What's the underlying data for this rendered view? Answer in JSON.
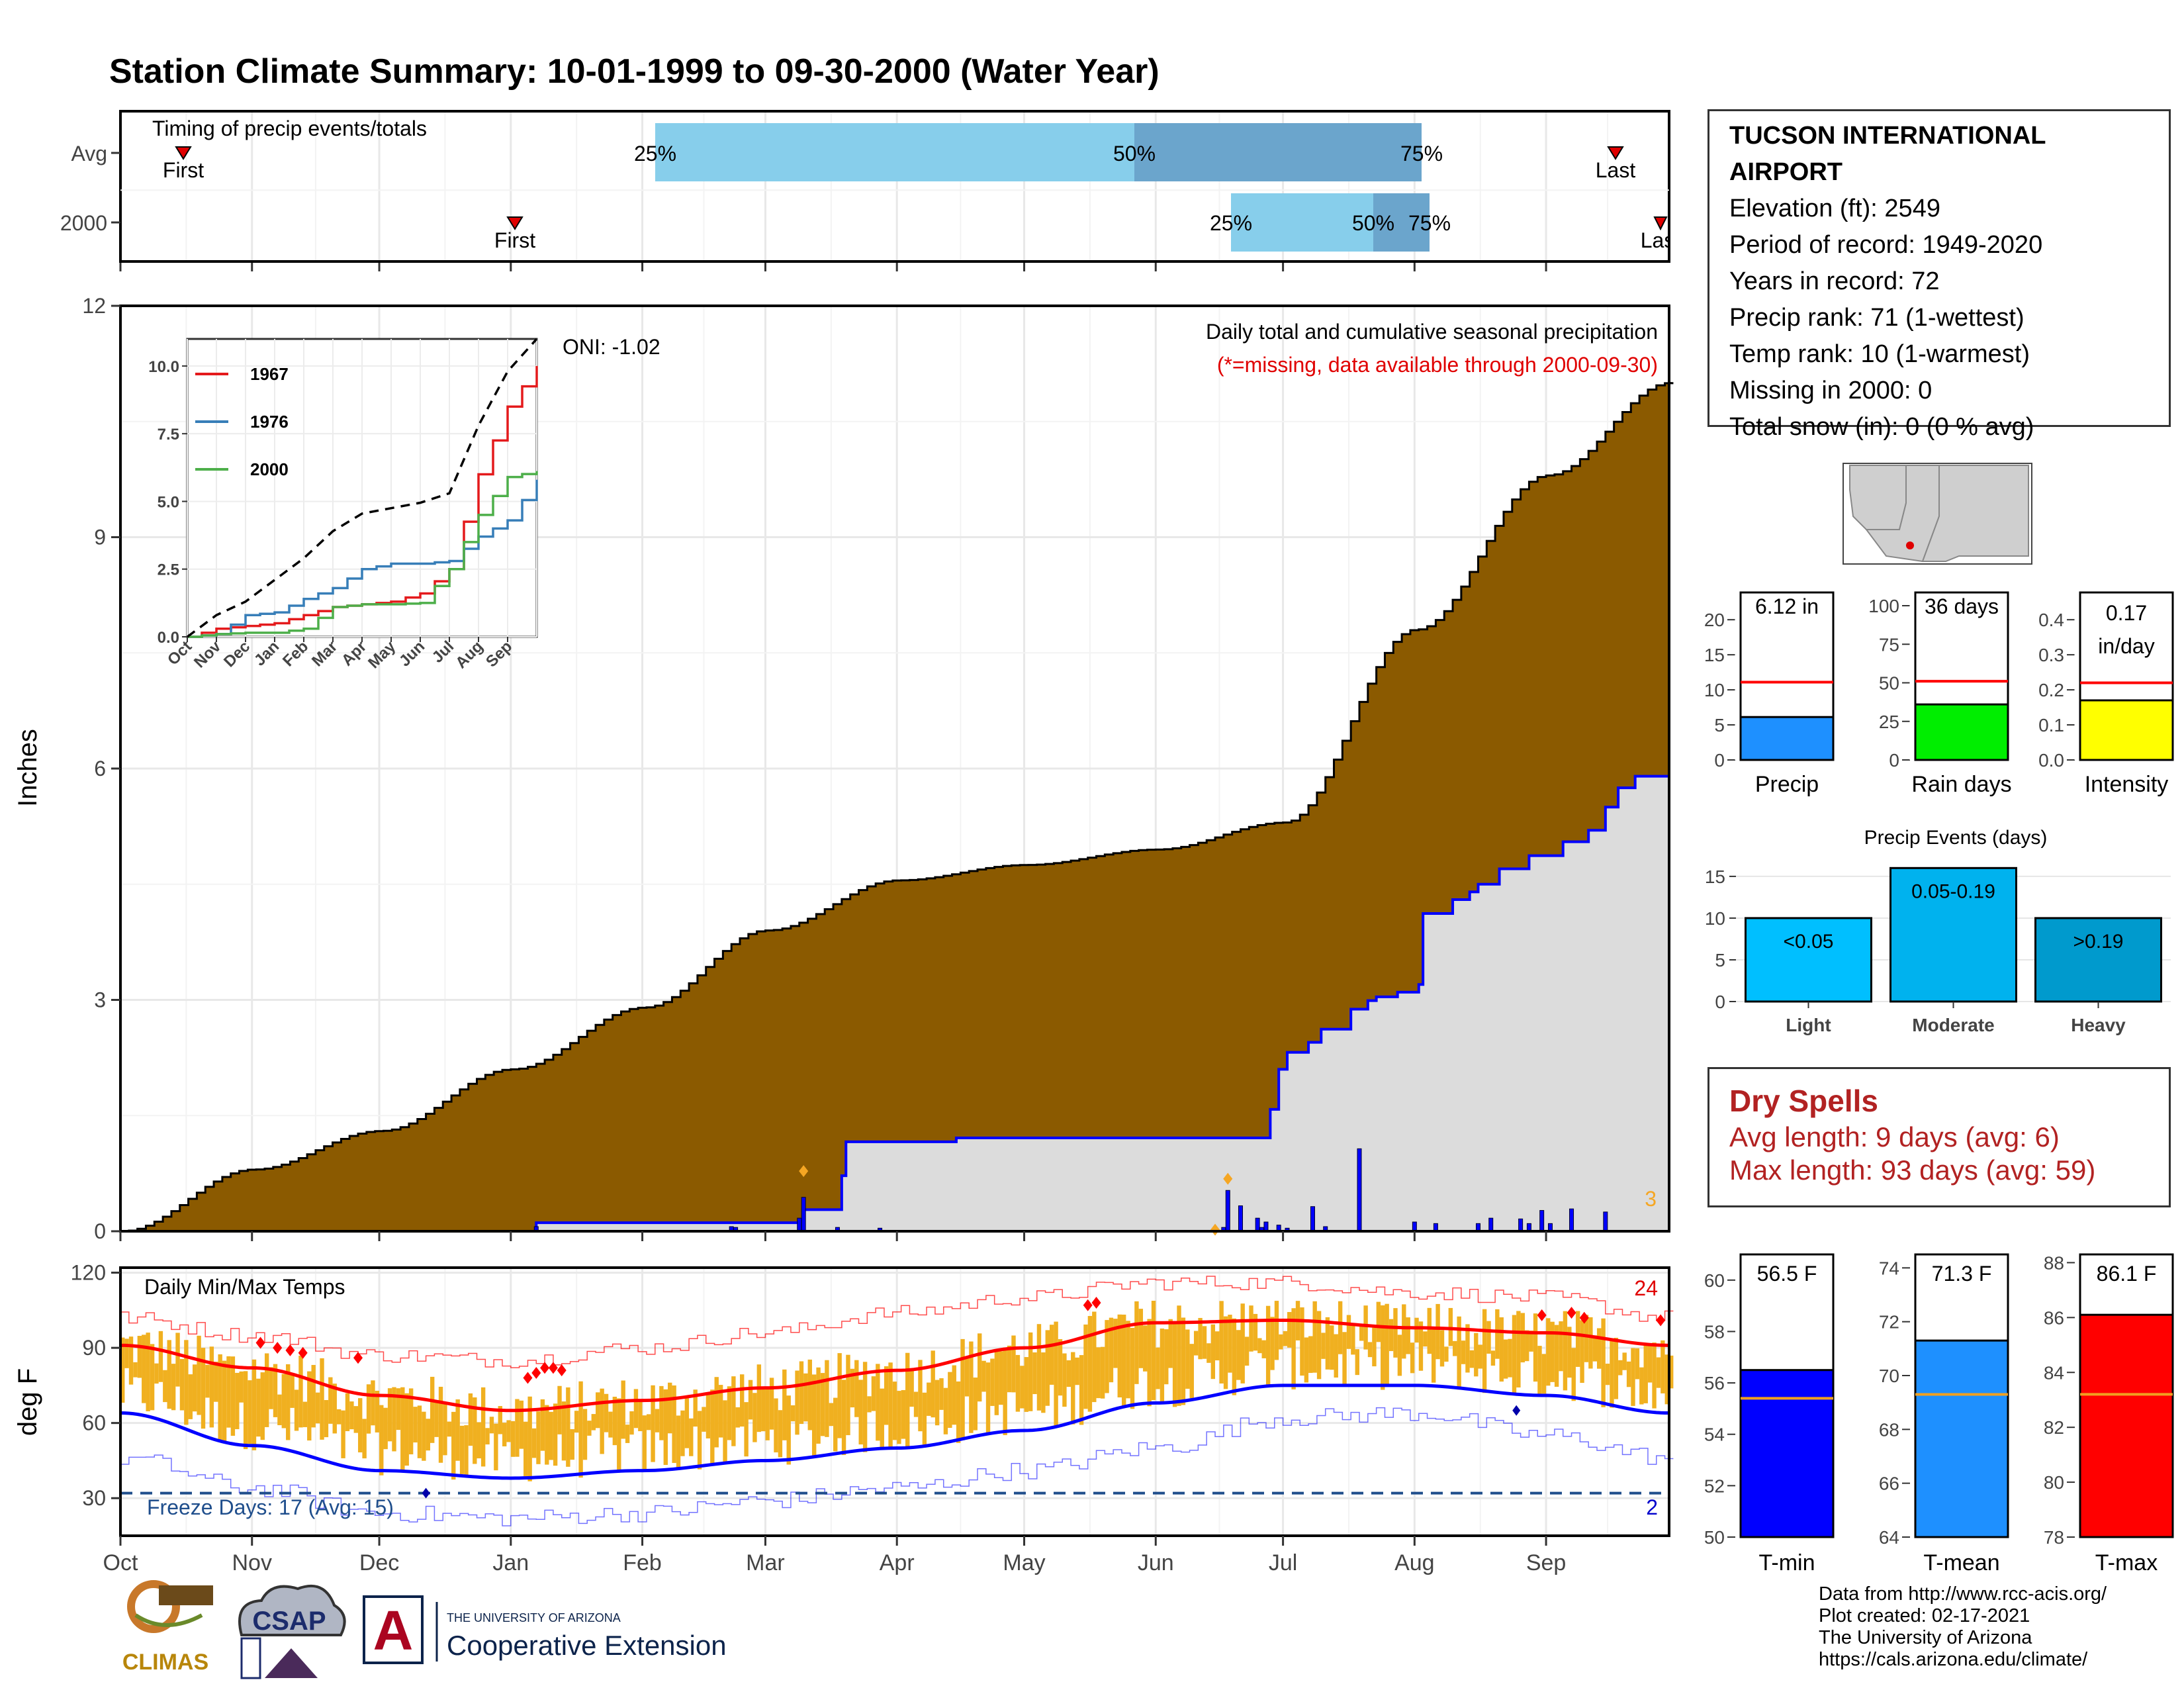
{
  "title": "Station Climate Summary: 10-01-1999 to 09-30-2000 (Water Year)",
  "colors": {
    "title": "#8b2500",
    "cumulative_avg": "#8b5a00",
    "cumulative_year": "#dcdcdc",
    "daily_bars": "#0000ff",
    "tmax_avg": "#ff0000",
    "tmin_avg": "#0000ff",
    "temp_bars": "#f0b020",
    "freeze_line": "#1f4e8c",
    "timing_light": "#87ceeb",
    "timing_dark": "#6ba5cc"
  },
  "timing": {
    "title": "Timing of precip events/totals",
    "rows": [
      "Avg",
      "2000"
    ],
    "avg": {
      "first": "First",
      "last": "Last",
      "p25": "25%",
      "p50": "50%",
      "p75": "75%"
    },
    "year": {
      "first": "First",
      "last": "Last",
      "p25": "25%",
      "p50": "50%",
      "p75": "75%"
    }
  },
  "precip_panel": {
    "ylabel": "Inches",
    "yticks": [
      "0",
      "3",
      "6",
      "9",
      "12"
    ],
    "label_main": "Daily total and cumulative seasonal precipitation",
    "label_missing": "(*=missing, data available through 2000-09-30)",
    "oni": "ONI: -1.02",
    "corner_count": "3"
  },
  "inset": {
    "yticks": [
      "0.0",
      "2.5",
      "5.0",
      "7.5",
      "10.0"
    ],
    "xticks": [
      "Oct",
      "Nov",
      "Dec",
      "Jan",
      "Feb",
      "Mar",
      "Apr",
      "May",
      "Jun",
      "Jul",
      "Aug",
      "Sep"
    ],
    "legend": [
      {
        "name": "1967",
        "color": "#e41a1c"
      },
      {
        "name": "1976",
        "color": "#377eb8"
      },
      {
        "name": "2000",
        "color": "#4daf4a"
      }
    ]
  },
  "temp_panel": {
    "title": "Daily Min/Max Temps",
    "ylabel": "deg F",
    "yticks": [
      "30",
      "60",
      "90",
      "120"
    ],
    "freeze": "Freeze Days: 17 (Avg: 15)",
    "count_hot": "24",
    "count_cold": "2"
  },
  "months": [
    "Oct",
    "Nov",
    "Dec",
    "Jan",
    "Feb",
    "Mar",
    "Apr",
    "May",
    "Jun",
    "Jul",
    "Aug",
    "Sep"
  ],
  "station": {
    "name": "TUCSON INTERNATIONAL AIRPORT",
    "elevation": "Elevation (ft): 2549",
    "period": "Period of record: 1949-2020",
    "years": "Years in record: 72",
    "precip_rank": "Precip rank: 71 (1-wettest)",
    "temp_rank": "Temp rank: 10 (1-warmest)",
    "missing": "Missing in 2000: 0",
    "snow": "Total snow (in): 0 (0 % avg)"
  },
  "mini_bars": {
    "precip": {
      "label": "Precip",
      "value_text": "6.12 in",
      "yticks": [
        "0",
        "5",
        "10",
        "15",
        "20"
      ]
    },
    "rain_days": {
      "label": "Rain days",
      "value_text": "36 days",
      "yticks": [
        "0",
        "25",
        "50",
        "75",
        "100"
      ]
    },
    "intensity": {
      "label": "Intensity",
      "value_text_1": "0.17",
      "value_text_2": "in/day",
      "yticks": [
        "0.0",
        "0.1",
        "0.2",
        "0.3",
        "0.4"
      ]
    }
  },
  "events": {
    "title": "Precip Events (days)",
    "yticks": [
      "0",
      "5",
      "10",
      "15"
    ],
    "categories": [
      "Light",
      "Moderate",
      "Heavy"
    ],
    "bar_labels": [
      "<0.05",
      "0.05-0.19",
      ">0.19"
    ]
  },
  "dry_spells": {
    "title": "Dry Spells",
    "avg": "Avg length: 9 days (avg: 6)",
    "max": "Max length: 93 days (avg: 59)"
  },
  "temp_bars": {
    "tmin": {
      "label": "T-min",
      "value_text": "56.5 F",
      "yticks": [
        "50",
        "52",
        "54",
        "56",
        "58",
        "60"
      ]
    },
    "tmean": {
      "label": "T-mean",
      "value_text": "71.3 F",
      "yticks": [
        "64",
        "66",
        "68",
        "70",
        "72",
        "74"
      ]
    },
    "tmax": {
      "label": "T-max",
      "value_text": "86.1 F",
      "yticks": [
        "78",
        "80",
        "82",
        "84",
        "86",
        "88"
      ]
    }
  },
  "footer": {
    "line1": "Data from http://www.rcc-acis.org/",
    "line2": "Plot created: 02-17-2021",
    "line3": "The University of Arizona",
    "line4": "https://cals.arizona.edu/climate/"
  },
  "logos": {
    "climas": "CLIMAS",
    "csap": "CSAP",
    "ua_small": "THE UNIVERSITY OF ARIZONA",
    "ua_big": "Cooperative Extension"
  },
  "chart_data": [
    {
      "type": "area",
      "name": "cumulative_precipitation",
      "x_months": [
        "Oct",
        "Nov",
        "Dec",
        "Jan",
        "Feb",
        "Mar",
        "Apr",
        "May",
        "Jun",
        "Jul",
        "Aug",
        "Sep",
        "Oct"
      ],
      "x_days": [
        0,
        31,
        61,
        92,
        123,
        152,
        183,
        213,
        244,
        274,
        305,
        336,
        365
      ],
      "avg_cumulative": [
        0.0,
        0.8,
        1.3,
        2.1,
        2.9,
        3.9,
        4.55,
        4.75,
        4.95,
        5.3,
        7.8,
        9.8,
        11.0
      ],
      "year_cumulative_steps": [
        [
          0,
          0.0
        ],
        [
          98,
          0.11
        ],
        [
          160,
          0.11
        ],
        [
          161,
          0.28
        ],
        [
          169,
          0.28
        ],
        [
          170,
          0.72
        ],
        [
          171,
          1.16
        ],
        [
          197,
          1.16
        ],
        [
          197,
          1.21
        ],
        [
          270,
          1.21
        ],
        [
          271,
          1.58
        ],
        [
          273,
          2.1
        ],
        [
          275,
          2.32
        ],
        [
          280,
          2.45
        ],
        [
          283,
          2.62
        ],
        [
          290,
          2.88
        ],
        [
          294,
          2.99
        ],
        [
          296,
          3.04
        ],
        [
          301,
          3.1
        ],
        [
          306,
          3.2
        ],
        [
          307,
          4.12
        ],
        [
          314,
          4.3
        ],
        [
          318,
          4.4
        ],
        [
          320,
          4.5
        ],
        [
          325,
          4.7
        ],
        [
          332,
          4.87
        ],
        [
          340,
          5.05
        ],
        [
          346,
          5.2
        ],
        [
          350,
          5.5
        ],
        [
          353,
          5.75
        ],
        [
          357,
          5.9
        ],
        [
          365,
          6.12
        ]
      ],
      "daily_precip": [
        [
          98,
          0.06
        ],
        [
          144,
          0.06
        ],
        [
          145,
          0.05
        ],
        [
          160,
          0.17
        ],
        [
          161,
          0.44
        ],
        [
          169,
          0.05
        ],
        [
          179,
          0.04
        ],
        [
          260,
          0.05
        ],
        [
          261,
          0.53
        ],
        [
          264,
          0.33
        ],
        [
          268,
          0.17
        ],
        [
          269,
          0.05
        ],
        [
          270,
          0.12
        ],
        [
          273,
          0.08
        ],
        [
          275,
          0.04
        ],
        [
          281,
          0.32
        ],
        [
          284,
          0.06
        ],
        [
          292,
          1.07
        ],
        [
          305,
          0.12
        ],
        [
          310,
          0.1
        ],
        [
          320,
          0.1
        ],
        [
          323,
          0.17
        ],
        [
          330,
          0.16
        ],
        [
          332,
          0.1
        ],
        [
          335,
          0.27
        ],
        [
          337,
          0.1
        ],
        [
          342,
          0.29
        ],
        [
          350,
          0.25
        ]
      ],
      "ylabel": "Inches",
      "ylim": [
        0,
        12
      ]
    },
    {
      "type": "line",
      "name": "inset_cumulative_comparison",
      "x": [
        "Oct",
        "Nov",
        "Dec",
        "Jan",
        "Feb",
        "Mar",
        "Apr",
        "May",
        "Jun",
        "Jul",
        "Aug",
        "Sep",
        "Oct"
      ],
      "series": [
        {
          "name": "1967",
          "values": [
            0.0,
            0.3,
            0.4,
            0.5,
            0.8,
            1.1,
            1.2,
            1.3,
            1.6,
            2.5,
            6.0,
            8.5,
            10.0
          ]
        },
        {
          "name": "1976",
          "values": [
            0.0,
            0.1,
            0.8,
            0.9,
            1.4,
            1.8,
            2.5,
            2.7,
            2.7,
            2.8,
            3.7,
            4.3,
            5.8
          ]
        },
        {
          "name": "2000",
          "values": [
            0.0,
            0.1,
            0.15,
            0.15,
            0.3,
            1.1,
            1.2,
            1.2,
            1.25,
            2.5,
            4.5,
            5.9,
            6.12
          ]
        },
        {
          "values": [
            0.0,
            0.8,
            1.3,
            2.1,
            2.9,
            3.9,
            4.55,
            4.75,
            4.95,
            5.3,
            7.8,
            9.8,
            11.0
          ]
        }
      ],
      "ylim": [
        0,
        11
      ]
    },
    {
      "type": "line",
      "name": "daily_temperatures",
      "x_months": [
        "Oct",
        "Nov",
        "Dec",
        "Jan",
        "Feb",
        "Mar",
        "Apr",
        "May",
        "Jun",
        "Jul",
        "Aug",
        "Sep",
        "Oct"
      ],
      "tmax_avg": [
        91,
        82,
        71,
        65,
        69,
        74,
        81,
        90,
        100,
        101,
        98,
        96,
        91
      ],
      "tmin_avg": [
        64,
        51,
        41,
        38,
        41,
        45,
        50,
        57,
        68,
        75,
        75,
        71,
        64
      ],
      "tmax_record": [
        102,
        95,
        87,
        85,
        90,
        96,
        104,
        110,
        116,
        116,
        112,
        110,
        102
      ],
      "tmin_record": [
        46,
        34,
        24,
        22,
        24,
        29,
        34,
        41,
        50,
        62,
        64,
        55,
        46
      ],
      "ylabel": "deg F",
      "ylim": [
        15,
        122
      ]
    },
    {
      "type": "bar",
      "name": "precip_summary",
      "categories": [
        "Precip",
        "Rain days",
        "Intensity"
      ],
      "values": [
        6.12,
        36,
        0.17
      ],
      "averages": [
        11.1,
        51,
        0.22
      ],
      "ylims": [
        [
          0,
          22
        ],
        [
          0,
          100
        ],
        [
          0,
          0.44
        ]
      ]
    },
    {
      "type": "bar",
      "name": "precip_events",
      "categories": [
        "Light",
        "Moderate",
        "Heavy"
      ],
      "values": [
        10,
        16,
        10
      ],
      "ylim": [
        0,
        16.5
      ]
    },
    {
      "type": "bar",
      "name": "temperature_summary",
      "categories": [
        "T-min",
        "T-mean",
        "T-max"
      ],
      "values": [
        56.5,
        71.3,
        86.1
      ],
      "averages": [
        55.4,
        69.3,
        83.2
      ],
      "ylims": [
        [
          50,
          61
        ],
        [
          64,
          74.5
        ],
        [
          78,
          88.3
        ]
      ]
    }
  ]
}
